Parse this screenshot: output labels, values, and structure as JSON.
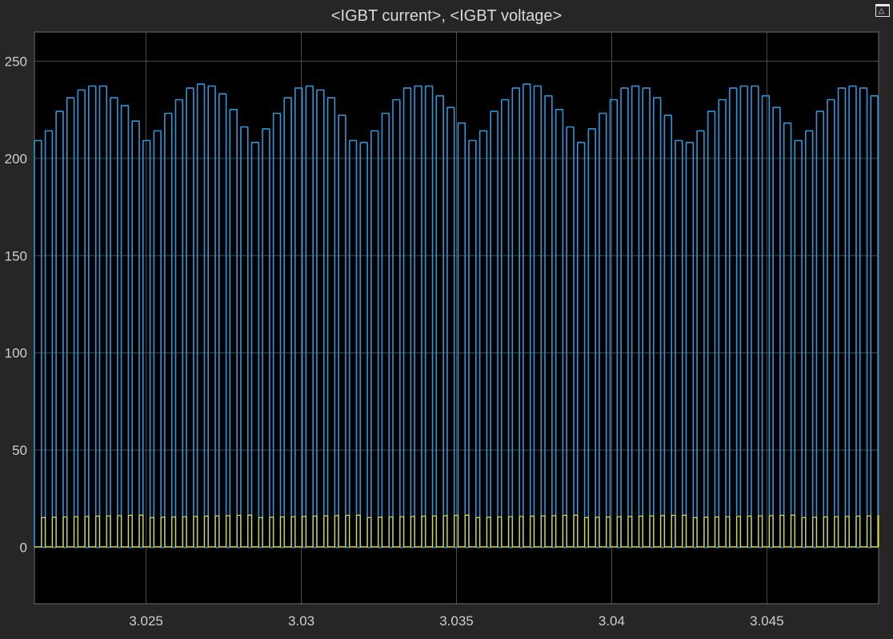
{
  "window": {
    "title": "<IGBT current>, <IGBT voltage>",
    "restore_icon": "restore-axes-icon"
  },
  "chart_data": {
    "type": "line",
    "title": "<IGBT current>, <IGBT voltage>",
    "xlabel": "",
    "ylabel": "",
    "xlim": [
      3.0214,
      3.0486
    ],
    "ylim": [
      -29,
      265
    ],
    "grid": true,
    "background": "#000000",
    "x_ticks": [
      3.025,
      3.03,
      3.035,
      3.04,
      3.045
    ],
    "x_tick_labels": [
      "3.025",
      "3.03",
      "3.035",
      "3.04",
      "3.045"
    ],
    "y_ticks": [
      0,
      50,
      100,
      150,
      200,
      250
    ],
    "y_tick_labels": [
      "0",
      "50",
      "100",
      "150",
      "200",
      "250"
    ],
    "series": [
      {
        "color": "#2f96d8",
        "pulse_period": 0.00035,
        "pulse_duty": 0.65,
        "pulse_peaks": [
          208,
          213,
          223,
          230,
          234,
          236,
          236,
          230,
          226,
          218,
          208,
          213,
          222,
          229,
          235,
          237,
          236,
          232,
          224,
          215,
          207,
          214,
          222,
          230,
          235,
          236,
          234,
          230,
          221,
          208,
          207,
          213,
          222,
          229,
          235,
          236,
          236,
          231,
          225,
          217,
          208,
          213,
          223,
          229,
          235,
          237,
          236,
          231,
          224,
          215,
          207,
          214,
          222,
          229,
          235,
          236,
          235,
          230,
          221,
          208,
          207,
          213,
          223,
          229,
          235,
          236,
          236,
          231,
          225,
          217,
          208,
          213,
          223,
          229,
          235,
          236,
          235,
          231
        ]
      },
      {
        "color": "#e6d83a",
        "pulse_period": 0.00035,
        "on_level": 0.3,
        "off_level_start": 15.2,
        "off_level_end": 16.6,
        "cycle_period": 0.0035
      }
    ]
  }
}
